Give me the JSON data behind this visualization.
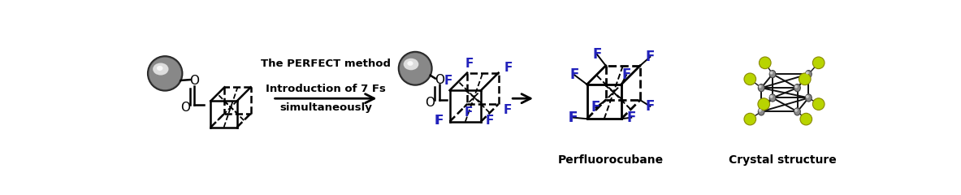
{
  "background_color": "#ffffff",
  "arrow_text_line1": "The PERFECT method",
  "arrow_text_line2": "Introduction of 7 Fs",
  "arrow_text_line3": "simultaneously",
  "label_perfluorocubane": "Perfluorocubane",
  "label_crystal": "Crystal structure",
  "F_color": "#2222bb",
  "fig_width": 11.83,
  "fig_height": 2.4
}
